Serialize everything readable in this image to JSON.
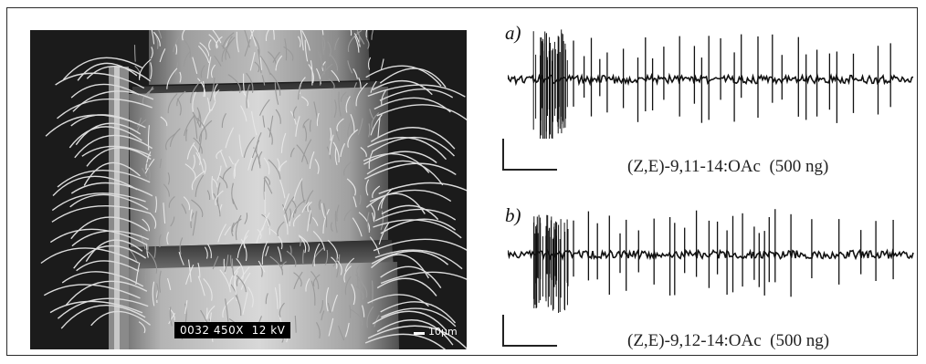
{
  "micrograph": {
    "info_text": "0032 450X  12 kV",
    "scale_label": "10µm",
    "background_color": "#1b1b1b"
  },
  "panels": [
    {
      "label": "a)",
      "caption": "(Z,E)-9,11-14:OAc  (500 ng)",
      "burst_strength": 1.0
    },
    {
      "label": "b)",
      "caption": "(Z,E)-9,12-14:OAc  (500 ng)",
      "burst_strength": 0.8
    }
  ],
  "colors": {
    "trace": "#111111",
    "frame": "#2a2a2a",
    "text": "#222222"
  }
}
